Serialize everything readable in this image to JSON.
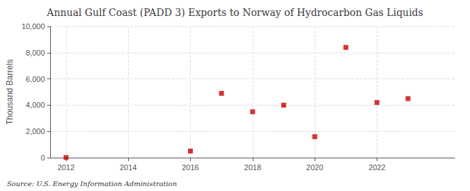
{
  "chart_data": {
    "type": "scatter",
    "title": "Annual Gulf Coast (PADD 3) Exports to Norway of Hydrocarbon Gas Liquids",
    "ylabel": "Thousand Barrels",
    "source": "Source: U.S. Energy Information Administration",
    "x": [
      2012,
      2016,
      2017,
      2018,
      2019,
      2020,
      2021,
      2022,
      2023
    ],
    "values": [
      10,
      500,
      4900,
      3500,
      4000,
      1600,
      8400,
      4200,
      4500
    ],
    "color": "#cc0000",
    "marker": "square",
    "xlim": [
      2011.5,
      2024.5
    ],
    "xticks": [
      2012,
      2014,
      2016,
      2018,
      2020,
      2022
    ],
    "ylim": [
      0,
      10000
    ],
    "yticks": [
      0,
      {
        "value": 2000,
        "label": "2,000"
      },
      {
        "value": 4000,
        "label": "4,000"
      },
      {
        "value": 6000,
        "label": "6,000"
      },
      {
        "value": 8000,
        "label": "8,000"
      },
      {
        "value": 10000,
        "label": "10,000"
      }
    ],
    "grid": true
  }
}
